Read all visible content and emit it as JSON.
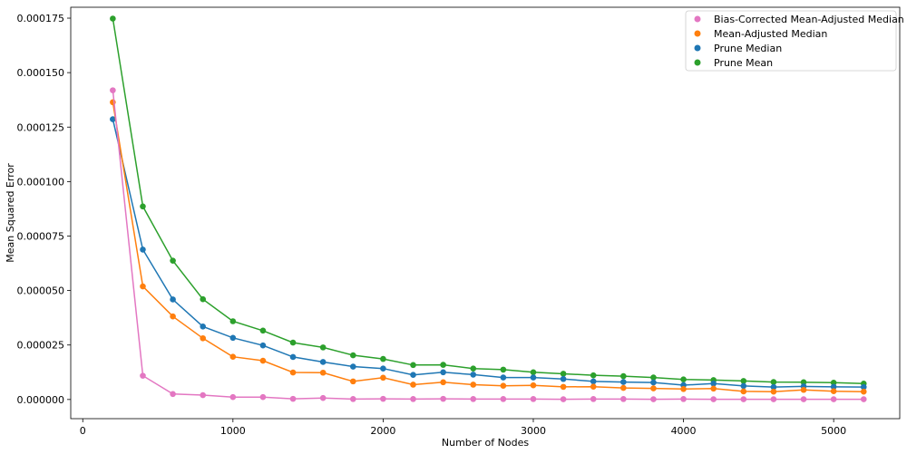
{
  "chart_data": {
    "type": "line",
    "xlabel": "Number of Nodes",
    "ylabel": "Mean Squared Error",
    "xlim": [
      -80,
      5440
    ],
    "ylim": [
      -8.8e-06,
      0.00018
    ],
    "x_ticks": [
      0,
      1000,
      2000,
      3000,
      4000,
      5000
    ],
    "x_tick_labels": [
      "0",
      "1000",
      "2000",
      "3000",
      "4000",
      "5000"
    ],
    "y_ticks": [
      0,
      2.5e-05,
      5e-05,
      7.5e-05,
      0.0001,
      0.000125,
      0.00015,
      0.000175
    ],
    "y_tick_labels": [
      "0.000000",
      "0.000025",
      "0.000050",
      "0.000075",
      "0.000100",
      "0.000125",
      "0.000150",
      "0.000175"
    ],
    "grid": false,
    "legend_position": "top-right",
    "x": [
      200,
      400,
      600,
      800,
      1000,
      1200,
      1400,
      1600,
      1800,
      2000,
      2200,
      2400,
      2600,
      2800,
      3000,
      3200,
      3400,
      3600,
      3800,
      4000,
      4200,
      4400,
      4600,
      4800,
      5000,
      5200
    ],
    "series": [
      {
        "name": "Prune Mean",
        "color": "#2ca02c",
        "values": [
          0.0001748,
          8.86e-05,
          6.37e-05,
          4.6e-05,
          3.59e-05,
          3.16e-05,
          2.61e-05,
          2.39e-05,
          2.03e-05,
          1.86e-05,
          1.58e-05,
          1.59e-05,
          1.42e-05,
          1.37e-05,
          1.25e-05,
          1.18e-05,
          1.11e-05,
          1.07e-05,
          1.01e-05,
          9.2e-06,
          8.9e-06,
          8.5e-06,
          8e-06,
          7.9e-06,
          7.7e-06,
          7.3e-06
        ]
      },
      {
        "name": "Prune Median",
        "color": "#1f77b4",
        "values": [
          0.0001286,
          6.88e-05,
          4.59e-05,
          3.35e-05,
          2.83e-05,
          2.48e-05,
          1.95e-05,
          1.72e-05,
          1.51e-05,
          1.42e-05,
          1.13e-05,
          1.25e-05,
          1.14e-05,
          1.01e-05,
          1.01e-05,
          9.4e-06,
          8.3e-06,
          8e-06,
          7.8e-06,
          6.6e-06,
          7.3e-06,
          6.2e-06,
          5.7e-06,
          6e-06,
          5.8e-06,
          5.7e-06
        ]
      },
      {
        "name": "Mean-Adjusted Median",
        "color": "#ff7f0e",
        "values": [
          0.0001364,
          5.19e-05,
          3.81e-05,
          2.81e-05,
          1.96e-05,
          1.78e-05,
          1.24e-05,
          1.23e-05,
          8.3e-06,
          1e-05,
          6.8e-06,
          7.9e-06,
          6.8e-06,
          6.3e-06,
          6.5e-06,
          5.8e-06,
          5.9e-06,
          5.3e-06,
          5.1e-06,
          4.8e-06,
          5e-06,
          3.7e-06,
          3.6e-06,
          4.4e-06,
          3.8e-06,
          3.6e-06
        ]
      },
      {
        "name": "Bias-Corrected Mean-Adjusted Median",
        "color": "#e377c2",
        "values": [
          0.0001419,
          1.09e-05,
          2.5e-06,
          2e-06,
          1.1e-06,
          1.1e-06,
          3e-07,
          7e-07,
          2e-07,
          3e-07,
          2e-07,
          3e-07,
          2e-07,
          2e-07,
          2e-07,
          1e-07,
          2e-07,
          2e-07,
          1e-07,
          2e-07,
          1e-07,
          1e-07,
          1e-07,
          1e-07,
          1e-07,
          1e-07
        ]
      }
    ],
    "legend": [
      {
        "label": "Bias-Corrected Mean-Adjusted Median",
        "color": "#e377c2"
      },
      {
        "label": "Mean-Adjusted Median",
        "color": "#ff7f0e"
      },
      {
        "label": "Prune Median",
        "color": "#1f77b4"
      },
      {
        "label": "Prune Mean",
        "color": "#2ca02c"
      }
    ]
  }
}
